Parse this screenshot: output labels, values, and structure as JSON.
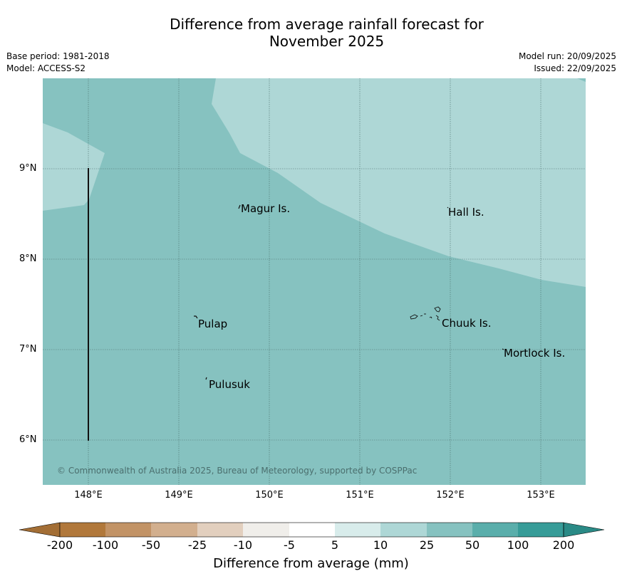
{
  "title": {
    "line1": "Difference from average rainfall forecast for",
    "line2": "November 2025"
  },
  "meta": {
    "base_period": "Base period: 1981-2018",
    "model": "Model: ACCESS-S2",
    "model_run": "Model run: 20/09/2025",
    "issued": "Issued: 22/09/2025"
  },
  "map": {
    "x_ticks": [
      "148°E",
      "149°E",
      "150°E",
      "151°E",
      "152°E",
      "153°E"
    ],
    "y_ticks": [
      "9°N",
      "8°N",
      "7°N",
      "6°N"
    ],
    "places": {
      "magur": "Magur Is.",
      "hall": "Hall Is.",
      "pulap": "Pulap",
      "chuuk": "Chuuk Is.",
      "mortlock": "Mortlock Is.",
      "pulusuk": "Pulusuk"
    },
    "copyright": "© Commonwealth of Australia 2025, Bureau of Meteorology, supported by COSPPac",
    "colors": {
      "category_25_50": "#86c2c0",
      "category_10_25": "#aed7d6"
    }
  },
  "colorbar": {
    "title": "Difference from average (mm)",
    "labels": [
      "-200",
      "-100",
      "-50",
      "-25",
      "-10",
      "-5",
      "5",
      "10",
      "25",
      "50",
      "100",
      "200"
    ],
    "colors": [
      "#a36e35",
      "#b1783b",
      "#c29366",
      "#d2af8e",
      "#e2cfbe",
      "#f0eeea",
      "#ffffff",
      "#d8eceb",
      "#aed7d6",
      "#86c2c0",
      "#5aaeab",
      "#379c98",
      "#2a8a86"
    ]
  }
}
